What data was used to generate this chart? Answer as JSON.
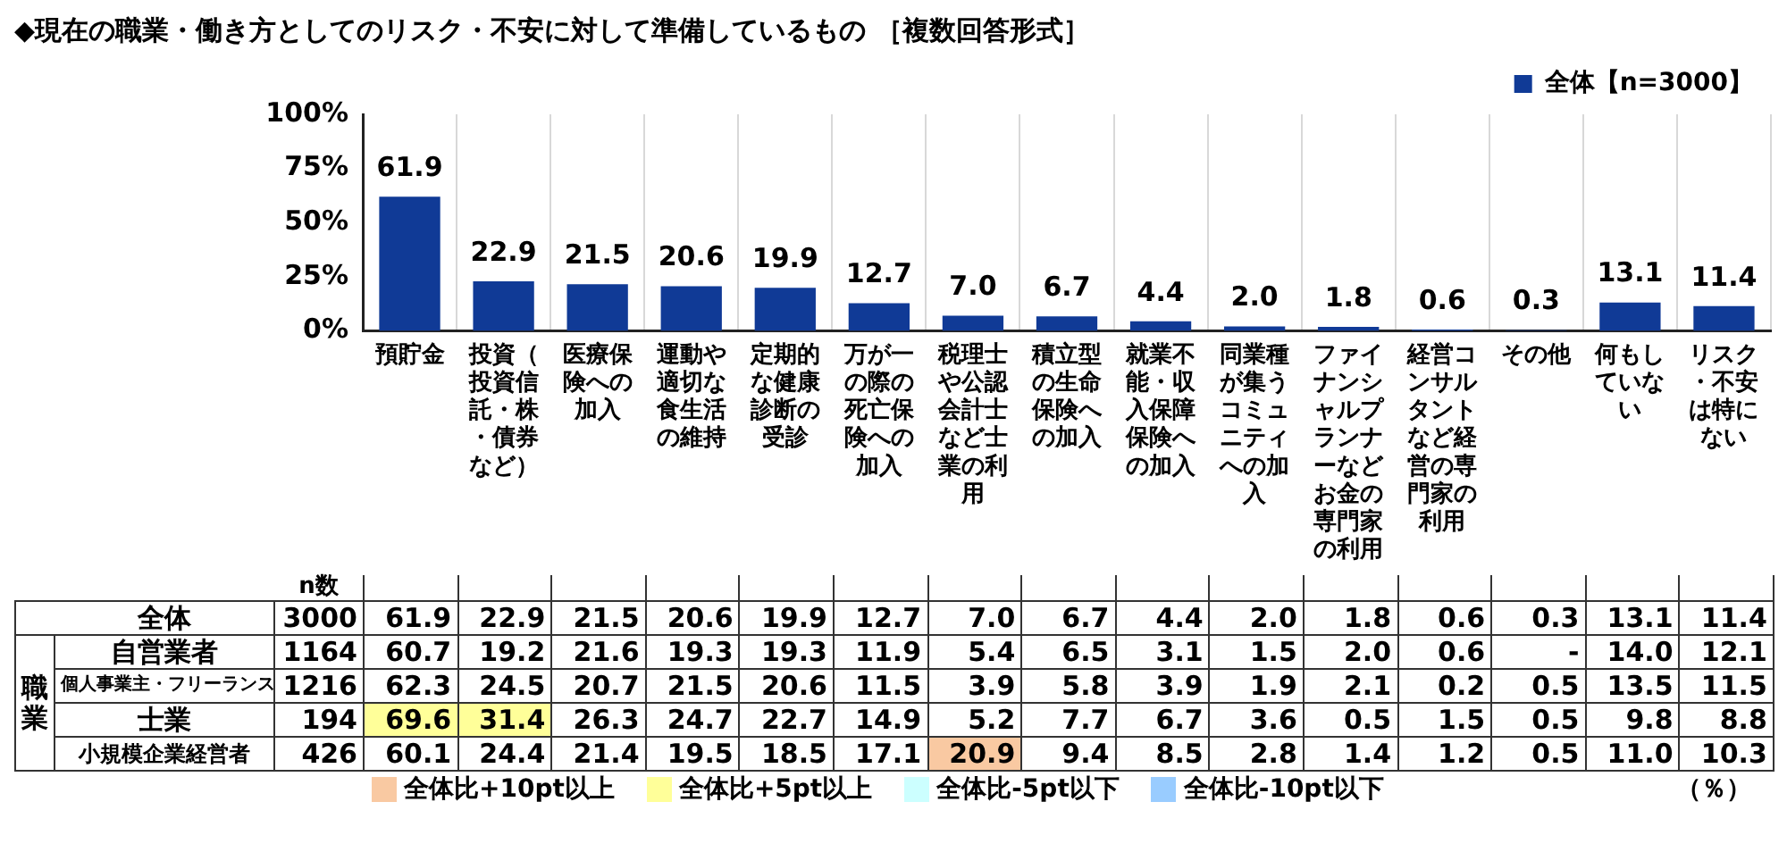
{
  "chart_data": [
    {
      "type": "bar",
      "title": "◆現在の職業・働き方としてのリスク・不安に対して準備しているもの ［複数回答形式］",
      "categories": [
        "預貯金",
        "投資（投資信託・株・債券など）",
        "医療保険への加入",
        "運動や適切な食生活の維持",
        "定期的な健康診断の受診",
        "万が一の際の死亡保険への加入",
        "税理士や公認会計士など士業の利用",
        "積立型の生命保険への加入",
        "就業不能・収入保障保険への加入",
        "同業種が集うコミュニティへの加入",
        "ファイナンシャルプランナーなどお金の専門家の利用",
        "経営コンサルタントなど経営の専門家の利用",
        "その他",
        "何もしていない",
        "リスク・不安は特にない"
      ],
      "series": [
        {
          "name": "全体【n=3000】",
          "color": "#103a96",
          "values": [
            61.9,
            22.9,
            21.5,
            20.6,
            19.9,
            12.7,
            7.0,
            6.7,
            4.4,
            2.0,
            1.8,
            0.6,
            0.3,
            13.1,
            11.4
          ],
          "value_labels": [
            "61.9",
            "22.9",
            "21.5",
            "20.6",
            "19.9",
            "12.7",
            "7.0",
            "6.7",
            "4.4",
            "2.0",
            "1.8",
            "0.6",
            "0.3",
            "13.1",
            "11.4"
          ]
        }
      ],
      "ylim": [
        0,
        100
      ],
      "yticks": [
        {
          "value": 0,
          "label": "0%"
        },
        {
          "value": 25,
          "label": "25%"
        },
        {
          "value": 50,
          "label": "50%"
        },
        {
          "value": 75,
          "label": "75%"
        },
        {
          "value": 100,
          "label": "100%"
        }
      ],
      "grid": "x",
      "legend": "top right"
    },
    {
      "type": "heatmap",
      "tick_labels": "y",
      "y2label": "n数",
      "categories": [
        "預貯金",
        "投資（投資信託・株・債券など）",
        "医療保険への加入",
        "運動や適切な食生活の維持",
        "定期的な健康診断の受診",
        "万が一の際の死亡保険への加入",
        "税理士や公認会計士など士業の利用",
        "積立型の生命保険への加入",
        "就業不能・収入保障保険への加入",
        "同業種が集うコミュニティへの加入",
        "ファイナンシャルプランナーなどお金の専門家の利用",
        "経営コンサルタントなど経営の専門家の利用",
        "その他",
        "何もしていない",
        "リスク・不安は特にない"
      ],
      "y_categories": [
        "全体",
        "自営業者",
        "個人事業主・フリーランス",
        "士業",
        "小規模企業経営者"
      ],
      "y2_categories": [
        "3000",
        "1164",
        "1216",
        "194",
        "426"
      ],
      "cells": [
        [
          61.9,
          22.9,
          21.5,
          20.6,
          19.9,
          12.7,
          7.0,
          6.7,
          4.4,
          2.0,
          1.8,
          0.6,
          0.3,
          13.1,
          11.4
        ],
        [
          60.7,
          19.2,
          21.6,
          19.3,
          19.3,
          11.9,
          5.4,
          6.5,
          3.1,
          1.5,
          2.0,
          0.6,
          null,
          14.0,
          12.1
        ],
        [
          62.3,
          24.5,
          20.7,
          21.5,
          20.6,
          11.5,
          3.9,
          5.8,
          3.9,
          1.9,
          2.1,
          0.2,
          0.5,
          13.5,
          11.5
        ],
        [
          69.6,
          31.4,
          26.3,
          24.7,
          22.7,
          14.9,
          5.2,
          7.7,
          6.7,
          3.6,
          0.5,
          1.5,
          0.5,
          9.8,
          8.8
        ],
        [
          60.1,
          24.4,
          21.4,
          19.5,
          18.5,
          17.1,
          20.9,
          9.4,
          8.5,
          2.8,
          1.4,
          1.2,
          0.5,
          11.0,
          10.3
        ]
      ],
      "cell_labels": [
        [
          "61.9",
          "22.9",
          "21.5",
          "20.6",
          "19.9",
          "12.7",
          "7.0",
          "6.7",
          "4.4",
          "2.0",
          "1.8",
          "0.6",
          "0.3",
          "13.1",
          "11.4"
        ],
        [
          "60.7",
          "19.2",
          "21.6",
          "19.3",
          "19.3",
          "11.9",
          "5.4",
          "6.5",
          "3.1",
          "1.5",
          "2.0",
          "0.6",
          "-",
          "14.0",
          "12.1"
        ],
        [
          "62.3",
          "24.5",
          "20.7",
          "21.5",
          "20.6",
          "11.5",
          "3.9",
          "5.8",
          "3.9",
          "1.9",
          "2.1",
          "0.2",
          "0.5",
          "13.5",
          "11.5"
        ],
        [
          "69.6",
          "31.4",
          "26.3",
          "24.7",
          "22.7",
          "14.9",
          "5.2",
          "7.7",
          "6.7",
          "3.6",
          "0.5",
          "1.5",
          "0.5",
          "9.8",
          "8.8"
        ],
        [
          "60.1",
          "24.4",
          "21.4",
          "19.5",
          "18.5",
          "17.1",
          "20.9",
          "9.4",
          "8.5",
          "2.8",
          "1.4",
          "1.2",
          "0.5",
          "11.0",
          "10.3"
        ]
      ],
      "colors": [
        [
          null,
          null,
          null,
          null,
          null,
          null,
          null,
          null,
          null,
          null,
          null,
          null,
          null,
          null,
          null
        ],
        [
          null,
          null,
          null,
          null,
          null,
          null,
          null,
          null,
          null,
          null,
          null,
          null,
          null,
          null,
          null
        ],
        [
          null,
          null,
          null,
          null,
          null,
          null,
          null,
          null,
          null,
          null,
          null,
          null,
          null,
          null,
          null
        ],
        [
          "#ffff99",
          "#ffff99",
          null,
          null,
          null,
          null,
          null,
          null,
          null,
          null,
          null,
          null,
          null,
          null,
          null
        ],
        [
          null,
          null,
          null,
          null,
          null,
          null,
          "#f9c9a2",
          null,
          null,
          null,
          null,
          null,
          null,
          null,
          null
        ]
      ],
      "annotations": [
        "職業",
        "全体比+10pt以上",
        "全体比+5pt以上",
        "全体比-5pt以下",
        "全体比-10pt以下",
        "（％）"
      ]
    }
  ]
}
